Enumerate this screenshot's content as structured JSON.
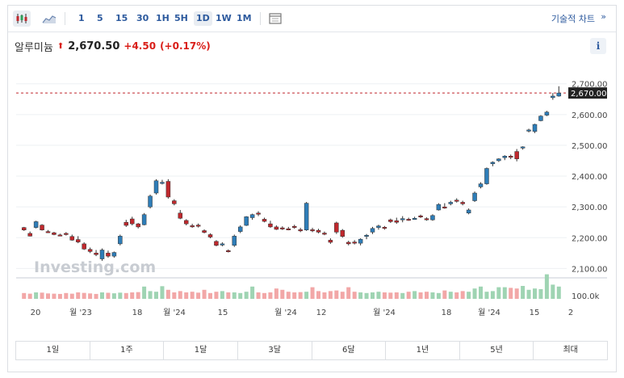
{
  "toolbar": {
    "timeframes": [
      "1",
      "5",
      "15",
      "30",
      "1H",
      "5H",
      "1D",
      "1W",
      "1M"
    ],
    "active_timeframe": "1D",
    "advanced_chart_label": "기술적 차트",
    "advanced_chart_chevron": "»",
    "icons": [
      "candlestick-icon",
      "area-chart-icon",
      "layout-icon"
    ]
  },
  "quote": {
    "name": "알루미늄",
    "arrow": "⬆",
    "price": "2,670.50",
    "change": "+4.50",
    "change_pct": "(+0.17%)",
    "info_label": "i"
  },
  "colors": {
    "up": "#2e7db8",
    "down": "#c0282d",
    "accent": "#2d5a9e"
  },
  "watermark": "Investing.com",
  "ranges": [
    "1일",
    "1주",
    "1달",
    "3달",
    "6달",
    "1년",
    "5년",
    "최대"
  ],
  "chart_data": {
    "type": "candlestick",
    "ylim": [
      2080,
      2715
    ],
    "yticks": [
      2100,
      2200,
      2300,
      2400,
      2500,
      2600,
      2700
    ],
    "ytick_labels": [
      "2,100.00",
      "2,200.00",
      "2,300.00",
      "2,400.00",
      "2,500.00",
      "2,600.00",
      "2,700.00"
    ],
    "last_price": 2670,
    "last_price_label": "2,670.00",
    "volume_label": "100.0k",
    "x_labels": [
      "20",
      "월 '23",
      "18",
      "월 '24",
      "15",
      "월 '24",
      "12",
      "월 '24",
      "18",
      "월 '24",
      "15",
      "2"
    ],
    "candles": [
      [
        2233,
        2235,
        2222,
        2225
      ],
      [
        2214,
        2220,
        2204,
        2205
      ],
      [
        2233,
        2255,
        2230,
        2252
      ],
      [
        2241,
        2244,
        2223,
        2225
      ],
      [
        2220,
        2225,
        2215,
        2218
      ],
      [
        2216,
        2219,
        2208,
        2210
      ],
      [
        2209,
        2213,
        2205,
        2208
      ],
      [
        2214,
        2218,
        2207,
        2210
      ],
      [
        2204,
        2210,
        2190,
        2192
      ],
      [
        2194,
        2205,
        2182,
        2186
      ],
      [
        2180,
        2185,
        2160,
        2163
      ],
      [
        2162,
        2168,
        2150,
        2155
      ],
      [
        2150,
        2160,
        2140,
        2145
      ],
      [
        2131,
        2165,
        2125,
        2160
      ],
      [
        2150,
        2158,
        2135,
        2140
      ],
      [
        2140,
        2155,
        2135,
        2152
      ],
      [
        2180,
        2210,
        2175,
        2205
      ],
      [
        2250,
        2258,
        2235,
        2240
      ],
      [
        2261,
        2268,
        2240,
        2245
      ],
      [
        2245,
        2248,
        2230,
        2235
      ],
      [
        2242,
        2280,
        2240,
        2275
      ],
      [
        2300,
        2340,
        2295,
        2335
      ],
      [
        2345,
        2390,
        2340,
        2385
      ],
      [
        2380,
        2388,
        2373,
        2380
      ],
      [
        2383,
        2390,
        2327,
        2332
      ],
      [
        2320,
        2325,
        2305,
        2310
      ],
      [
        2280,
        2290,
        2260,
        2263
      ],
      [
        2256,
        2260,
        2240,
        2245
      ],
      [
        2239,
        2245,
        2232,
        2236
      ],
      [
        2241,
        2246,
        2233,
        2237
      ],
      [
        2223,
        2227,
        2214,
        2217
      ],
      [
        2210,
        2214,
        2198,
        2202
      ],
      [
        2188,
        2192,
        2172,
        2175
      ],
      [
        2178,
        2185,
        2172,
        2180
      ],
      [
        2158,
        2162,
        2152,
        2156
      ],
      [
        2175,
        2210,
        2170,
        2205
      ],
      [
        2220,
        2240,
        2215,
        2235
      ],
      [
        2240,
        2270,
        2238,
        2268
      ],
      [
        2265,
        2278,
        2258,
        2275
      ],
      [
        2280,
        2286,
        2270,
        2278
      ],
      [
        2260,
        2265,
        2250,
        2253
      ],
      [
        2245,
        2255,
        2232,
        2235
      ],
      [
        2235,
        2240,
        2225,
        2227
      ],
      [
        2232,
        2237,
        2225,
        2230
      ],
      [
        2229,
        2235,
        2224,
        2227
      ],
      [
        2237,
        2242,
        2229,
        2233
      ],
      [
        2226,
        2232,
        2218,
        2222
      ],
      [
        2225,
        2316,
        2222,
        2312
      ],
      [
        2226,
        2232,
        2218,
        2222
      ],
      [
        2224,
        2229,
        2214,
        2218
      ],
      [
        2215,
        2220,
        2208,
        2212
      ],
      [
        2192,
        2198,
        2180,
        2185
      ],
      [
        2248,
        2252,
        2212,
        2218
      ],
      [
        2224,
        2228,
        2200,
        2204
      ],
      [
        2185,
        2190,
        2175,
        2180
      ],
      [
        2186,
        2192,
        2178,
        2182
      ],
      [
        2182,
        2198,
        2175,
        2195
      ],
      [
        2205,
        2212,
        2195,
        2208
      ],
      [
        2218,
        2235,
        2212,
        2230
      ],
      [
        2233,
        2242,
        2226,
        2238
      ],
      [
        2234,
        2238,
        2226,
        2230
      ],
      [
        2258,
        2262,
        2248,
        2252
      ],
      [
        2255,
        2265,
        2245,
        2250
      ],
      [
        2258,
        2270,
        2250,
        2262
      ],
      [
        2260,
        2265,
        2255,
        2258
      ],
      [
        2262,
        2268,
        2258,
        2263
      ],
      [
        2271,
        2275,
        2264,
        2268
      ],
      [
        2262,
        2266,
        2255,
        2258
      ],
      [
        2258,
        2276,
        2255,
        2272
      ],
      [
        2290,
        2312,
        2288,
        2308
      ],
      [
        2300,
        2312,
        2294,
        2297
      ],
      [
        2310,
        2320,
        2305,
        2315
      ],
      [
        2322,
        2328,
        2314,
        2318
      ],
      [
        2315,
        2320,
        2305,
        2310
      ],
      [
        2280,
        2295,
        2276,
        2290
      ],
      [
        2320,
        2350,
        2316,
        2345
      ],
      [
        2365,
        2380,
        2360,
        2375
      ],
      [
        2375,
        2428,
        2372,
        2425
      ],
      [
        2440,
        2448,
        2432,
        2445
      ],
      [
        2450,
        2458,
        2446,
        2456
      ],
      [
        2460,
        2468,
        2452,
        2465
      ],
      [
        2465,
        2470,
        2455,
        2463
      ],
      [
        2480,
        2488,
        2448,
        2456
      ],
      [
        2492,
        2497,
        2486,
        2495
      ],
      [
        2548,
        2554,
        2542,
        2550
      ],
      [
        2545,
        2570,
        2540,
        2568
      ],
      [
        2580,
        2598,
        2578,
        2595
      ],
      [
        2598,
        2612,
        2595,
        2608
      ],
      [
        2655,
        2670,
        2648,
        2660
      ],
      [
        2660,
        2692,
        2658,
        2670
      ]
    ],
    "volumes": [
      0.45,
      0.4,
      0.5,
      0.48,
      0.42,
      0.4,
      0.38,
      0.45,
      0.4,
      0.5,
      0.46,
      0.42,
      0.38,
      0.5,
      0.47,
      0.43,
      0.48,
      0.45,
      0.5,
      0.52,
      0.95,
      0.6,
      0.55,
      0.98,
      0.7,
      0.5,
      0.6,
      0.5,
      0.55,
      0.48,
      0.7,
      0.45,
      0.55,
      0.6,
      0.5,
      0.5,
      0.45,
      0.55,
      0.95,
      0.5,
      0.45,
      0.5,
      0.8,
      0.7,
      0.55,
      0.5,
      0.52,
      0.55,
      0.9,
      0.6,
      0.5,
      0.6,
      0.65,
      0.55,
      0.9,
      0.55,
      0.5,
      0.45,
      0.5,
      0.55,
      0.5,
      0.48,
      0.5,
      0.45,
      0.55,
      0.6,
      0.5,
      0.55,
      0.5,
      0.45,
      0.65,
      0.55,
      0.5,
      0.6,
      0.55,
      0.8,
      0.95,
      0.55,
      0.6,
      0.9,
      0.9,
      0.85,
      0.8,
      1.0,
      0.7,
      0.8,
      0.75,
      1.9,
      1.1,
      0.95
    ]
  }
}
